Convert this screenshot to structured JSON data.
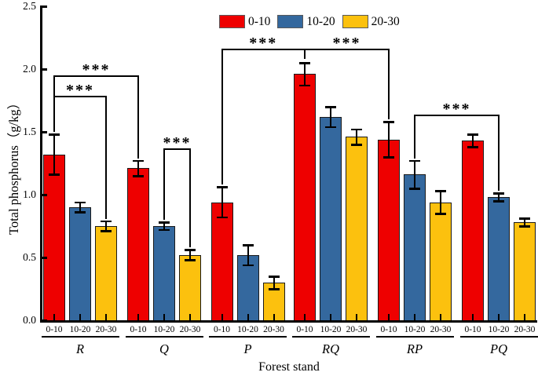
{
  "figure": {
    "background": "#ffffff"
  },
  "chart_data": {
    "type": "bar",
    "title": "",
    "xlabel": "Forest stand",
    "ylabel": "Total phosphorus（g/kg）",
    "ylim": [
      0,
      2.5
    ],
    "ytick_labels": [
      "0.0",
      "0.5",
      "1.0",
      "1.5",
      "2.0",
      "2.5"
    ],
    "grid": false,
    "legend": {
      "position": "top-center",
      "entries": [
        "0-10",
        "10-20",
        "20-30"
      ]
    },
    "categories": [
      "R",
      "Q",
      "P",
      "RQ",
      "RP",
      "PQ"
    ],
    "series": [
      {
        "name": "0-10",
        "color": "#ee0000",
        "values": [
          1.32,
          1.21,
          0.94,
          1.96,
          1.44,
          1.43
        ],
        "errors": [
          0.16,
          0.06,
          0.12,
          0.09,
          0.14,
          0.05
        ]
      },
      {
        "name": "10-20",
        "color": "#34689e",
        "values": [
          0.9,
          0.75,
          0.52,
          1.62,
          1.16,
          0.98
        ],
        "errors": [
          0.04,
          0.03,
          0.08,
          0.08,
          0.11,
          0.03
        ]
      },
      {
        "name": "20-30",
        "color": "#fcc10e",
        "values": [
          0.75,
          0.52,
          0.3,
          1.46,
          0.94,
          0.78
        ],
        "errors": [
          0.04,
          0.04,
          0.05,
          0.06,
          0.09,
          0.03
        ]
      }
    ],
    "bar_tick_labels_source": "series names repeated under every bar",
    "significance_brackets": [
      {
        "label": "***",
        "left": {
          "group": "R",
          "series": "0-10"
        },
        "right": {
          "group": "R",
          "series": "20-30"
        },
        "level": 1.79
      },
      {
        "label": "***",
        "left": {
          "group": "R",
          "series": "0-10"
        },
        "right": {
          "group": "Q",
          "series": "0-10"
        },
        "level": 1.95
      },
      {
        "label": "***",
        "left": {
          "group": "Q",
          "series": "10-20"
        },
        "right": {
          "group": "Q",
          "series": "20-30"
        },
        "level": 1.37
      },
      {
        "label": "***",
        "left": {
          "group": "P",
          "series": "0-10"
        },
        "right": {
          "group": "RQ",
          "series": "0-10"
        },
        "level": 2.16,
        "right_stop": 2.08
      },
      {
        "label": "***",
        "left": {
          "group": "RQ",
          "series": "0-10"
        },
        "right": {
          "group": "RP",
          "series": "0-10"
        },
        "level": 2.16,
        "left_stop": 2.08
      },
      {
        "label": "***",
        "left": {
          "group": "RP",
          "series": "10-20"
        },
        "right": {
          "group": "PQ",
          "series": "10-20"
        },
        "level": 1.64
      }
    ]
  }
}
